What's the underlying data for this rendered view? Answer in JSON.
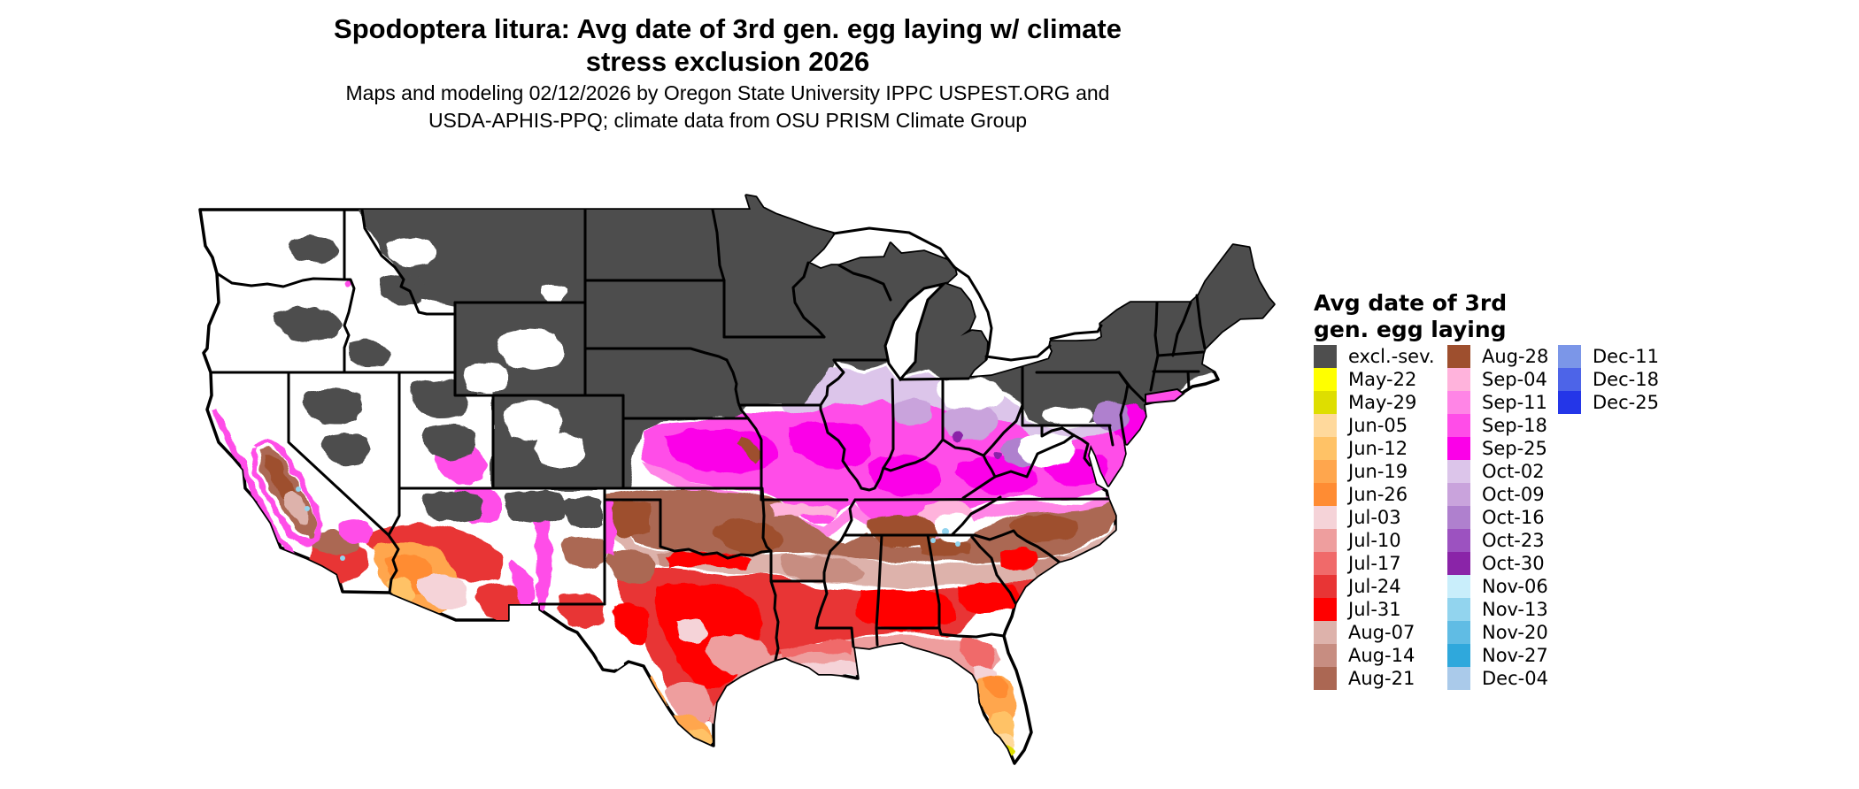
{
  "title": {
    "line1": "Spodoptera litura: Avg date of 3rd gen. egg laying w/ climate",
    "line2": "stress exclusion 2026"
  },
  "subtitle": {
    "line1": "Maps and modeling 02/12/2026 by Oregon State University IPPC USPEST.ORG and",
    "line2": "USDA-APHIS-PPQ; climate data from OSU PRISM Climate Group"
  },
  "legend": {
    "title_line1": "Avg date of 3rd",
    "title_line2": "gen. egg laying",
    "columns": [
      {
        "items": [
          {
            "label": "excl.-sev.",
            "key": "excl"
          },
          {
            "label": "May-22",
            "key": "may22"
          },
          {
            "label": "May-29",
            "key": "may29"
          },
          {
            "label": "Jun-05",
            "key": "jun05"
          },
          {
            "label": "Jun-12",
            "key": "jun12"
          },
          {
            "label": "Jun-19",
            "key": "jun19"
          },
          {
            "label": "Jun-26",
            "key": "jun26"
          },
          {
            "label": "Jul-03",
            "key": "jul03"
          },
          {
            "label": "Jul-10",
            "key": "jul10"
          },
          {
            "label": "Jul-17",
            "key": "jul17"
          },
          {
            "label": "Jul-24",
            "key": "jul24"
          },
          {
            "label": "Jul-31",
            "key": "jul31"
          },
          {
            "label": "Aug-07",
            "key": "aug07"
          },
          {
            "label": "Aug-14",
            "key": "aug14"
          },
          {
            "label": "Aug-21",
            "key": "aug21"
          }
        ]
      },
      {
        "items": [
          {
            "label": "Aug-28",
            "key": "aug28"
          },
          {
            "label": "Sep-04",
            "key": "sep04"
          },
          {
            "label": "Sep-11",
            "key": "sep11"
          },
          {
            "label": "Sep-18",
            "key": "sep18"
          },
          {
            "label": "Sep-25",
            "key": "sep25"
          },
          {
            "label": "Oct-02",
            "key": "oct02"
          },
          {
            "label": "Oct-09",
            "key": "oct09"
          },
          {
            "label": "Oct-16",
            "key": "oct16"
          },
          {
            "label": "Oct-23",
            "key": "oct23"
          },
          {
            "label": "Oct-30",
            "key": "oct30"
          },
          {
            "label": "Nov-06",
            "key": "nov06"
          },
          {
            "label": "Nov-13",
            "key": "nov13"
          },
          {
            "label": "Nov-20",
            "key": "nov20"
          },
          {
            "label": "Nov-27",
            "key": "nov27"
          },
          {
            "label": "Dec-04",
            "key": "dec04"
          }
        ]
      },
      {
        "items": [
          {
            "label": "Dec-11",
            "key": "dec11"
          },
          {
            "label": "Dec-18",
            "key": "dec18"
          },
          {
            "label": "Dec-25",
            "key": "dec25"
          }
        ]
      }
    ]
  },
  "colors": {
    "excl": "#4E4E4E",
    "may22": "#FFFF00",
    "may29": "#DEDE00",
    "jun05": "#FFD99C",
    "jun12": "#FFC266",
    "jun19": "#FFA64D",
    "jun26": "#FF8C33",
    "jul03": "#F5D3D8",
    "jul10": "#EE9E9E",
    "jul17": "#F06A6A",
    "jul24": "#E83535",
    "jul31": "#FF0000",
    "aug07": "#DDB2AB",
    "aug14": "#C78D81",
    "aug21": "#AB6753",
    "aug28": "#9E4F2E",
    "sep04": "#FFB3DC",
    "sep11": "#FF85E6",
    "sep18": "#FF4DE8",
    "sep25": "#FB00E8",
    "oct02": "#DCC5EA",
    "oct09": "#C9A3DC",
    "oct16": "#AF80CE",
    "oct23": "#9C52C0",
    "oct30": "#8A24A8",
    "nov06": "#C9EEFB",
    "nov13": "#92D4EE",
    "nov20": "#60BCE4",
    "nov27": "#2FA8DC",
    "dec04": "#AACAEA",
    "dec11": "#7B96E8",
    "dec18": "#4D64E8",
    "dec25": "#2436E8"
  },
  "map": {
    "land_color": "#FFFFFF",
    "border_color": "#000000",
    "excluded_color": "#4E4E4E"
  }
}
